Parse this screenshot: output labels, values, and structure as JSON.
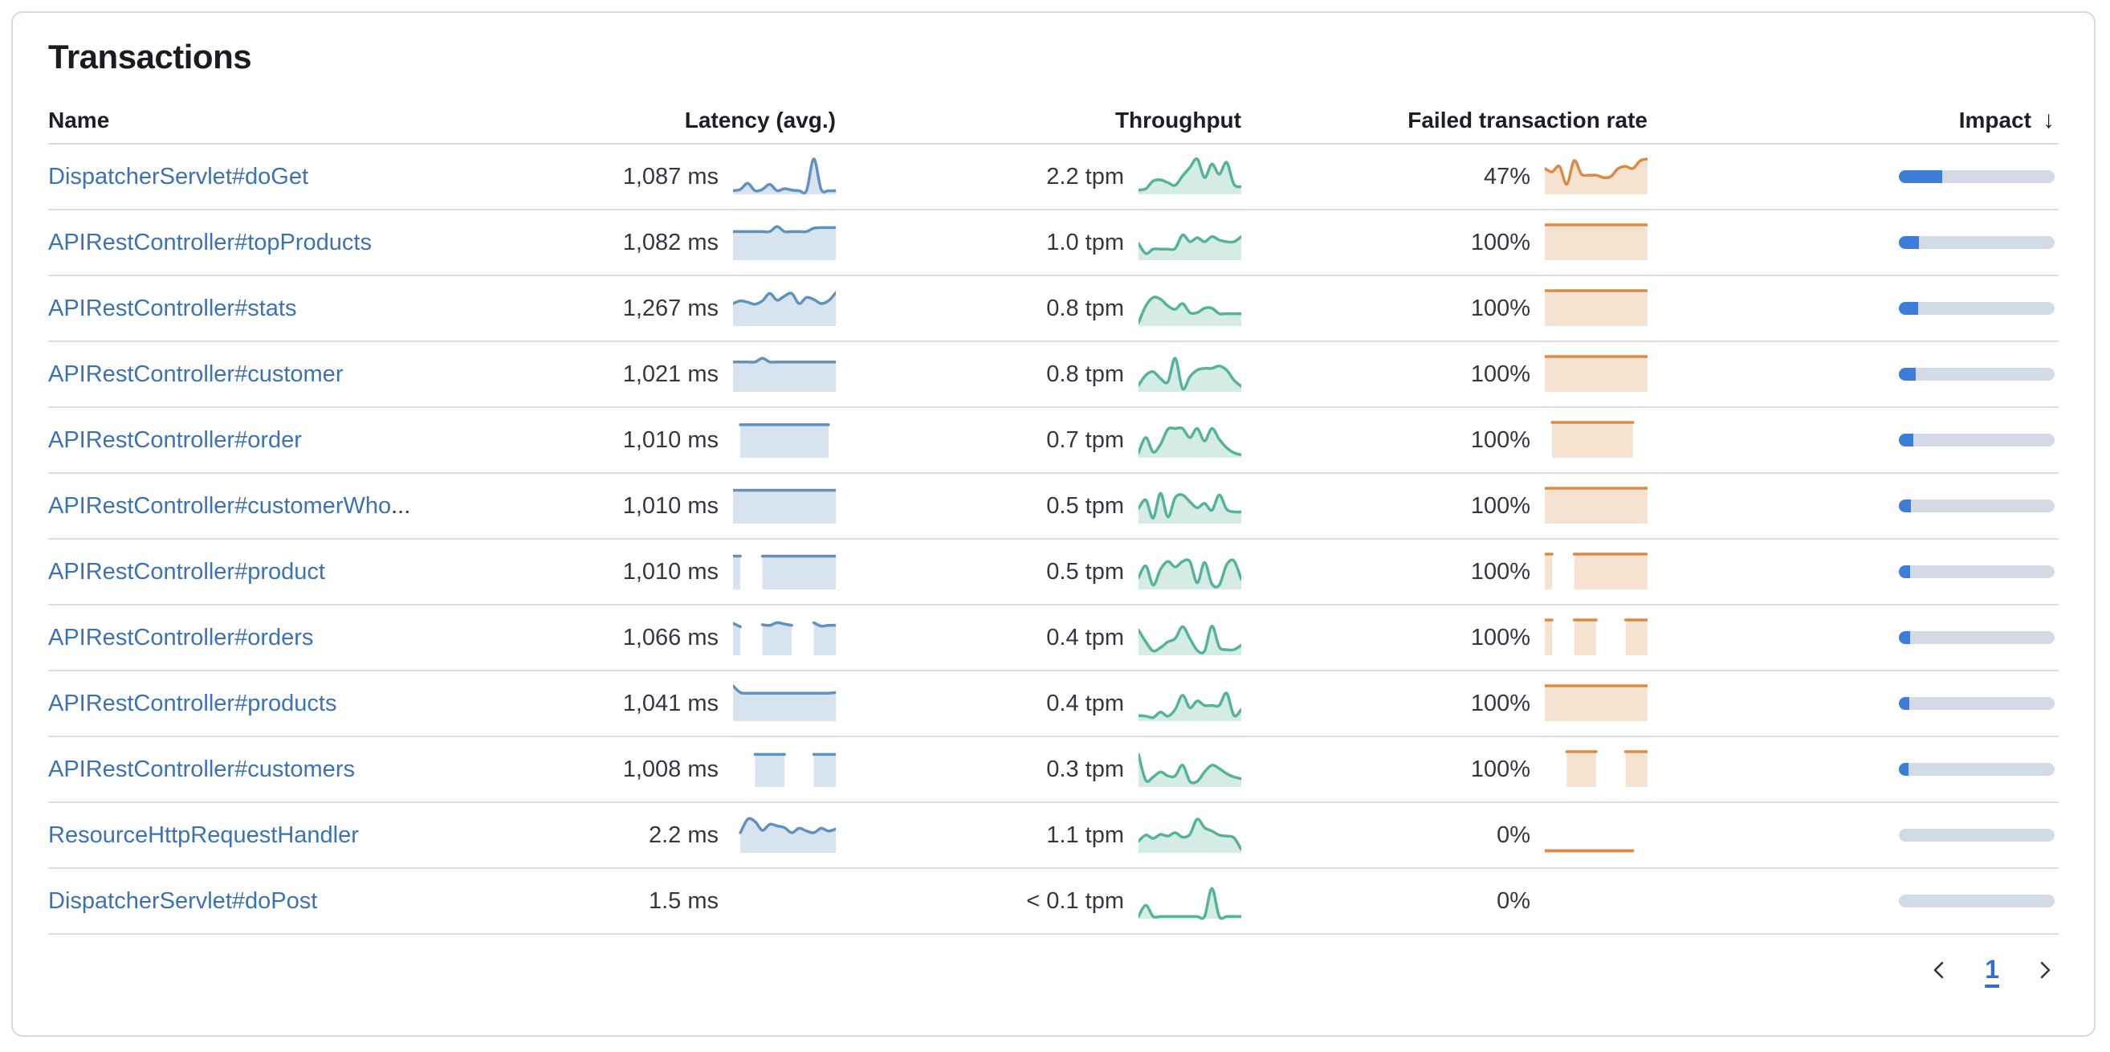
{
  "card": {
    "title": "Transactions"
  },
  "table": {
    "columns": {
      "name": "Name",
      "latency": "Latency (avg.)",
      "throughput": "Throughput",
      "failed_rate": "Failed transaction rate",
      "impact": "Impact",
      "impact_sort_icon": "↓"
    },
    "rows": [
      {
        "name": "DispatcherServlet#doGet",
        "name_tail": "",
        "latency": "1,087 ms",
        "throughput": "2.2 tpm",
        "failed_rate": "47%",
        "impact_pct": 28,
        "latency_spark": [
          0.06,
          0.1,
          0.28,
          0.06,
          0.1,
          0.25,
          0.06,
          0.12,
          0.08,
          0.06,
          0.06,
          1.0,
          0.1,
          0.06,
          0.06
        ],
        "throughput_spark": [
          0.08,
          0.12,
          0.35,
          0.38,
          0.3,
          0.22,
          0.5,
          0.75,
          1.0,
          0.45,
          0.85,
          0.55,
          0.9,
          0.25,
          0.18
        ],
        "failed_spark": [
          0.72,
          0.62,
          0.78,
          0.25,
          0.95,
          0.55,
          0.52,
          0.52,
          0.45,
          0.48,
          0.72,
          0.78,
          0.72,
          0.95,
          1.0
        ]
      },
      {
        "name": "APIRestController#topProducts",
        "name_tail": "",
        "latency": "1,082 ms",
        "throughput": "1.0 tpm",
        "failed_rate": "100%",
        "impact_pct": 13,
        "latency_spark": [
          0.8,
          0.8,
          0.8,
          0.8,
          0.8,
          0.8,
          0.95,
          0.8,
          0.8,
          0.8,
          0.8,
          0.9,
          0.92,
          0.92,
          0.92
        ],
        "throughput_spark": [
          0.45,
          0.15,
          0.28,
          0.28,
          0.28,
          0.3,
          0.7,
          0.5,
          0.62,
          0.5,
          0.65,
          0.55,
          0.5,
          0.5,
          0.65
        ],
        "failed_spark": [
          1,
          1,
          1,
          1,
          1,
          1,
          1,
          1,
          1,
          1,
          1,
          1,
          1,
          1,
          1
        ]
      },
      {
        "name": "APIRestController#stats",
        "name_tail": "",
        "latency": "1,267 ms",
        "throughput": "0.8 tpm",
        "failed_rate": "100%",
        "impact_pct": 12.5,
        "latency_spark": [
          0.62,
          0.7,
          0.66,
          0.6,
          0.7,
          0.92,
          0.72,
          0.84,
          0.92,
          0.62,
          0.8,
          0.74,
          0.62,
          0.7,
          0.94
        ],
        "throughput_spark": [
          0.05,
          0.55,
          0.8,
          0.75,
          0.55,
          0.45,
          0.62,
          0.35,
          0.35,
          0.48,
          0.48,
          0.32,
          0.32,
          0.32,
          0.32
        ],
        "failed_spark": [
          1,
          1,
          1,
          1,
          1,
          1,
          1,
          1,
          1,
          1,
          1,
          1,
          1,
          1,
          1
        ]
      },
      {
        "name": "APIRestController#customer",
        "name_tail": "",
        "latency": "1,021 ms",
        "throughput": "0.8 tpm",
        "failed_rate": "100%",
        "impact_pct": 11,
        "latency_spark": [
          0.84,
          0.84,
          0.84,
          0.84,
          0.95,
          0.84,
          0.84,
          0.84,
          0.84,
          0.84,
          0.84,
          0.84,
          0.84,
          0.84,
          0.84
        ],
        "throughput_spark": [
          0.15,
          0.45,
          0.55,
          0.35,
          0.25,
          0.95,
          0.05,
          0.4,
          0.6,
          0.65,
          0.65,
          0.72,
          0.6,
          0.3,
          0.12
        ],
        "failed_spark": [
          1,
          1,
          1,
          1,
          1,
          1,
          1,
          1,
          1,
          1,
          1,
          1,
          1,
          1,
          1
        ]
      },
      {
        "name": "APIRestController#order",
        "name_tail": "",
        "latency": "1,010 ms",
        "throughput": "0.7 tpm",
        "failed_rate": "100%",
        "impact_pct": 9.5,
        "latency_spark": [
          null,
          0.93,
          0.93,
          0.93,
          0.93,
          0.93,
          0.93,
          0.93,
          0.93,
          0.93,
          0.93,
          0.93,
          0.93,
          0.93,
          null
        ],
        "throughput_spark": [
          0.1,
          0.55,
          0.12,
          0.35,
          0.8,
          0.82,
          0.82,
          0.55,
          0.82,
          0.45,
          0.82,
          0.5,
          0.25,
          0.1,
          0.04
        ],
        "failed_spark": [
          null,
          1,
          1,
          1,
          1,
          1,
          1,
          1,
          1,
          1,
          1,
          1,
          1,
          null,
          null
        ]
      },
      {
        "name": "APIRestController#customerWho",
        "name_tail": "...",
        "latency": "1,010 ms",
        "throughput": "0.5 tpm",
        "failed_rate": "100%",
        "impact_pct": 7.5,
        "latency_spark": [
          0.94,
          0.94,
          0.94,
          0.94,
          0.94,
          0.94,
          0.94,
          0.94,
          0.94,
          0.94,
          0.94,
          0.94,
          0.94,
          0.94,
          0.94
        ],
        "throughput_spark": [
          0.4,
          0.65,
          0.12,
          0.85,
          0.15,
          0.72,
          0.8,
          0.6,
          0.42,
          0.55,
          0.35,
          0.8,
          0.38,
          0.3,
          0.3
        ],
        "failed_spark": [
          1,
          1,
          1,
          1,
          1,
          1,
          1,
          1,
          1,
          1,
          1,
          1,
          1,
          1,
          1
        ]
      },
      {
        "name": "APIRestController#product",
        "name_tail": "",
        "latency": "1,010 ms",
        "throughput": "0.5 tpm",
        "failed_rate": "100%",
        "impact_pct": 7,
        "latency_spark": [
          0.94,
          0.94,
          null,
          null,
          0.94,
          0.94,
          0.94,
          0.94,
          0.94,
          0.94,
          0.94,
          0.94,
          0.94,
          0.94,
          0.94
        ],
        "throughput_spark": [
          0.3,
          0.65,
          0.08,
          0.55,
          0.78,
          0.62,
          0.78,
          0.78,
          0.15,
          0.75,
          0.12,
          0.08,
          0.68,
          0.8,
          0.25
        ],
        "failed_spark": [
          1,
          1,
          null,
          null,
          1,
          1,
          1,
          1,
          1,
          1,
          1,
          1,
          1,
          1,
          1
        ]
      },
      {
        "name": "APIRestController#orders",
        "name_tail": "",
        "latency": "1,066 ms",
        "throughput": "0.4 tpm",
        "failed_rate": "100%",
        "impact_pct": 7,
        "latency_spark": [
          0.9,
          0.8,
          null,
          null,
          0.86,
          0.84,
          0.92,
          0.88,
          0.84,
          null,
          null,
          0.92,
          0.82,
          0.84,
          0.84
        ],
        "throughput_spark": [
          0.7,
          0.35,
          0.08,
          0.18,
          0.35,
          0.45,
          0.8,
          0.45,
          0.1,
          0.08,
          0.82,
          0.2,
          0.12,
          0.12,
          0.25
        ],
        "failed_spark": [
          1,
          1,
          null,
          null,
          1,
          1,
          1,
          1,
          null,
          null,
          null,
          1,
          1,
          1,
          1
        ]
      },
      {
        "name": "APIRestController#products",
        "name_tail": "",
        "latency": "1,041 ms",
        "throughput": "0.4 tpm",
        "failed_rate": "100%",
        "impact_pct": 6.5,
        "latency_spark": [
          1.0,
          0.8,
          0.78,
          0.78,
          0.78,
          0.78,
          0.78,
          0.78,
          0.78,
          0.78,
          0.78,
          0.78,
          0.78,
          0.78,
          0.8
        ],
        "throughput_spark": [
          0.12,
          0.1,
          0.06,
          0.22,
          0.1,
          0.3,
          0.72,
          0.35,
          0.55,
          0.42,
          0.42,
          0.42,
          0.78,
          0.12,
          0.3
        ],
        "failed_spark": [
          1,
          1,
          1,
          1,
          1,
          1,
          1,
          1,
          1,
          1,
          1,
          1,
          1,
          1,
          1
        ]
      },
      {
        "name": "APIRestController#customers",
        "name_tail": "",
        "latency": "1,008 ms",
        "throughput": "0.3 tpm",
        "failed_rate": "100%",
        "impact_pct": 6,
        "latency_spark": [
          null,
          null,
          null,
          0.92,
          0.92,
          0.92,
          0.92,
          0.92,
          null,
          null,
          null,
          0.92,
          0.92,
          0.92,
          0.92
        ],
        "throughput_spark": [
          0.92,
          0.15,
          0.25,
          0.4,
          0.28,
          0.28,
          0.6,
          0.12,
          0.12,
          0.4,
          0.6,
          0.5,
          0.35,
          0.25,
          0.2
        ],
        "failed_spark": [
          null,
          null,
          null,
          1,
          1,
          1,
          1,
          1,
          null,
          null,
          null,
          1,
          1,
          1,
          1
        ]
      },
      {
        "name": "ResourceHttpRequestHandler",
        "name_tail": "",
        "latency": "2.2 ms",
        "throughput": "1.1 tpm",
        "failed_rate": "0%",
        "impact_pct": 0,
        "latency_spark": [
          null,
          0.55,
          0.95,
          0.88,
          0.62,
          0.8,
          0.75,
          0.7,
          0.55,
          0.68,
          0.6,
          0.55,
          0.68,
          0.6,
          0.66
        ],
        "throughput_spark": [
          0.3,
          0.48,
          0.38,
          0.5,
          0.45,
          0.55,
          0.42,
          0.5,
          0.95,
          0.7,
          0.6,
          0.48,
          0.45,
          0.4,
          0.05
        ],
        "failed_spark": [
          0.02,
          0.02,
          0.02,
          0.02,
          0.02,
          0.02,
          0.02,
          0.02,
          0.02,
          0.02,
          0.02,
          0.02,
          0.02,
          null,
          null
        ]
      },
      {
        "name": "DispatcherServlet#doPost",
        "name_tail": "",
        "latency": "1.5 ms",
        "throughput": "< 0.1 tpm",
        "failed_rate": "0%",
        "impact_pct": 0,
        "latency_spark": [],
        "throughput_spark": [
          0.02,
          0.35,
          0.02,
          0.02,
          0.02,
          0.02,
          0.02,
          0.02,
          0.02,
          0.02,
          0.85,
          0.02,
          0.02,
          0.02,
          0.02
        ],
        "failed_spark": []
      }
    ]
  },
  "pagination": {
    "current_page": "1"
  },
  "colors": {
    "link": "#3C72B4",
    "title_text": "#1A1C21",
    "header_text": "#1D1F26",
    "value_text": "#343741",
    "row_separator": "#D9DEE9",
    "header_separator": "#D3DAE6",
    "card_border": "#D3DAE6",
    "card_background": "#FFFFFF",
    "impact_track": "#D3DAE6",
    "impact_fill": "#3C7DD9",
    "pagination_active": "#2E6FD1",
    "chevron": "#343741",
    "sparkline": {
      "latency": {
        "stroke": "#6092C0",
        "fill": "rgba(96,146,192,0.25)"
      },
      "throughput": {
        "stroke": "#54B399",
        "fill": "rgba(84,179,153,0.25)"
      },
      "failed": {
        "stroke": "#DA8B45",
        "fill": "rgba(218,139,69,0.25)"
      }
    }
  }
}
